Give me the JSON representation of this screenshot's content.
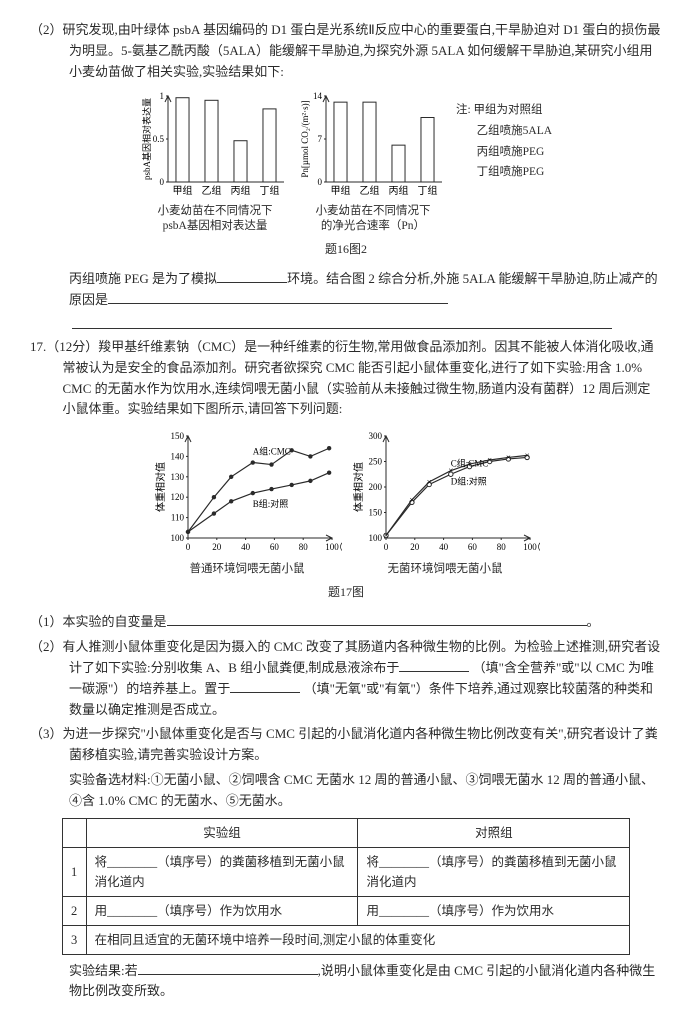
{
  "q16_2": {
    "intro": "（2）研究发现,由叶绿体 psbA 基因编码的 D1 蛋白是光系统Ⅱ反应中心的重要蛋白,干旱胁迫对 D1 蛋白的损伤最为明显。5-氨基乙酰丙酸（5ALA）能缓解干旱胁迫,为探究外源 5ALA 如何缓解干旱胁迫,某研究小组用小麦幼苗做了相关实验,实验结果如下:",
    "chart1": {
      "type": "bar",
      "ylabel": "psbA基因相对表达量",
      "cats": [
        "甲组",
        "乙组",
        "丙组",
        "丁组"
      ],
      "vals": [
        0.98,
        0.95,
        0.48,
        0.85
      ],
      "ylim": [
        0,
        1.0
      ],
      "yticks": [
        0,
        0.5,
        1.0
      ],
      "bar_w": 0.45,
      "fill": "#ffffff",
      "stroke": "#2a2a2a",
      "bg": "#ffffff",
      "caption": "小麦幼苗在不同情况下\npsbA基因相对表达量"
    },
    "chart2": {
      "type": "bar",
      "ylabel": "Pn[µmol CO₂/(m²·s)]",
      "cats": [
        "甲组",
        "乙组",
        "丙组",
        "丁组"
      ],
      "vals": [
        13.0,
        13.0,
        6.0,
        10.5
      ],
      "ylim": [
        0,
        14.0
      ],
      "yticks": [
        0,
        7.0,
        14.0
      ],
      "bar_w": 0.45,
      "fill": "#ffffff",
      "stroke": "#2a2a2a",
      "bg": "#ffffff",
      "caption": "小麦幼苗在不同情况下\n的净光合速率（Pn）"
    },
    "legend": {
      "prefix": "注:",
      "items": [
        "甲组为对照组",
        "乙组喷施5ALA",
        "丙组喷施PEG",
        "丁组喷施PEG"
      ]
    },
    "fig_label": "题16图2",
    "answer_prefix": "丙组喷施 PEG 是为了模拟",
    "answer_mid": "环境。结合图 2 综合分析,外施 5ALA 能缓解干旱胁迫,防止减产的原因是"
  },
  "q17": {
    "head": "17.（12分）羧甲基纤维素钠（CMC）是一种纤维素的衍生物,常用做食品添加剂。因其不能被人体消化吸收,通常被认为是安全的食品添加剂。研究者欲探究 CMC 能否引起小鼠体重变化,进行了如下实验:用含 1.0% CMC 的无菌水作为饮用水,连续饲喂无菌小鼠（实验前从未接触过微生物,肠道内没有菌群）12 周后测定小鼠体重。实验结果如下图所示,请回答下列问题:",
    "line_chart_L": {
      "type": "line",
      "ylabel": "体重相对值",
      "xlabel": "（天）",
      "title": "普通环境饲喂无菌小鼠",
      "xlim": [
        0,
        100
      ],
      "xticks": [
        0,
        20,
        40,
        60,
        80,
        100
      ],
      "ylim": [
        100,
        150
      ],
      "yticks": [
        100,
        110,
        120,
        130,
        140,
        150
      ],
      "series": [
        {
          "label": "A组:CMC",
          "marker": "●",
          "color": "#2a2a2a",
          "x": [
            0,
            18,
            30,
            45,
            58,
            72,
            85,
            98
          ],
          "y": [
            103,
            120,
            130,
            137,
            136,
            143,
            140,
            144
          ]
        },
        {
          "label": "B组:对照",
          "marker": "●",
          "color": "#2a2a2a",
          "x": [
            0,
            18,
            30,
            45,
            58,
            72,
            85,
            98
          ],
          "y": [
            103,
            112,
            118,
            122,
            124,
            126,
            128,
            132
          ]
        }
      ]
    },
    "line_chart_R": {
      "type": "line",
      "ylabel": "体重相对值",
      "xlabel": "（天）",
      "title": "无菌环境饲喂无菌小鼠",
      "xlim": [
        0,
        100
      ],
      "xticks": [
        0,
        20,
        40,
        60,
        80,
        100
      ],
      "ylim": [
        100,
        300
      ],
      "yticks": [
        100,
        150,
        200,
        250,
        300
      ],
      "series": [
        {
          "label": "C组:CMC",
          "marker": "○",
          "color": "#2a2a2a",
          "x": [
            0,
            18,
            30,
            45,
            58,
            72,
            85,
            98
          ],
          "y": [
            105,
            170,
            205,
            225,
            240,
            250,
            255,
            258
          ]
        },
        {
          "label": "D组:对照",
          "marker": "×",
          "color": "#2a2a2a",
          "x": [
            0,
            18,
            30,
            45,
            58,
            72,
            85,
            98
          ],
          "y": [
            105,
            175,
            210,
            232,
            245,
            253,
            258,
            262
          ]
        }
      ]
    },
    "fig_label": "题17图",
    "p1": "（1）本实验的自变量是",
    "p2": {
      "t1": "（2）有人推测小鼠体重变化是因为摄入的 CMC 改变了其肠道内各种微生物的比例。为检验上述推测,研究者设计了如下实验:分别收集 A、B 组小鼠粪便,制成悬液涂布于",
      "t2": "（填\"含全营养\"或\"以 CMC 为唯一碳源\"）的培养基上。置于",
      "t3": "（填\"无氧\"或\"有氧\"）条件下培养,通过观察比较菌落的种类和数量以确定推测是否成立。"
    },
    "p3": {
      "t1": "（3）为进一步探究\"小鼠体重变化是否与 CMC 引起的小鼠消化道内各种微生物比例改变有关\",研究者设计了粪菌移植实验,请完善实验设计方案。",
      "materials": "实验备选材料:①无菌小鼠、②饲喂含 CMC 无菌水 12 周的普通小鼠、③饲喂无菌水 12 周的普通小鼠、④含 1.0% CMC 的无菌水、⑤无菌水。",
      "table": {
        "headers": [
          "",
          "实验组",
          "对照组"
        ],
        "rows": [
          [
            "1",
            "将________（填序号）的粪菌移植到无菌小鼠消化道内",
            "将________（填序号）的粪菌移植到无菌小鼠消化道内"
          ],
          [
            "2",
            "用________（填序号）作为饮用水",
            "用________（填序号）作为饮用水"
          ],
          [
            "3",
            "在相同且适宜的无菌环境中培养一段时间,测定小鼠的体重变化"
          ]
        ]
      },
      "result_pre": "实验结果:若",
      "result_post": ",说明小鼠体重变化是由 CMC 引起的小鼠消化道内各种微生物比例改变所致。"
    }
  }
}
